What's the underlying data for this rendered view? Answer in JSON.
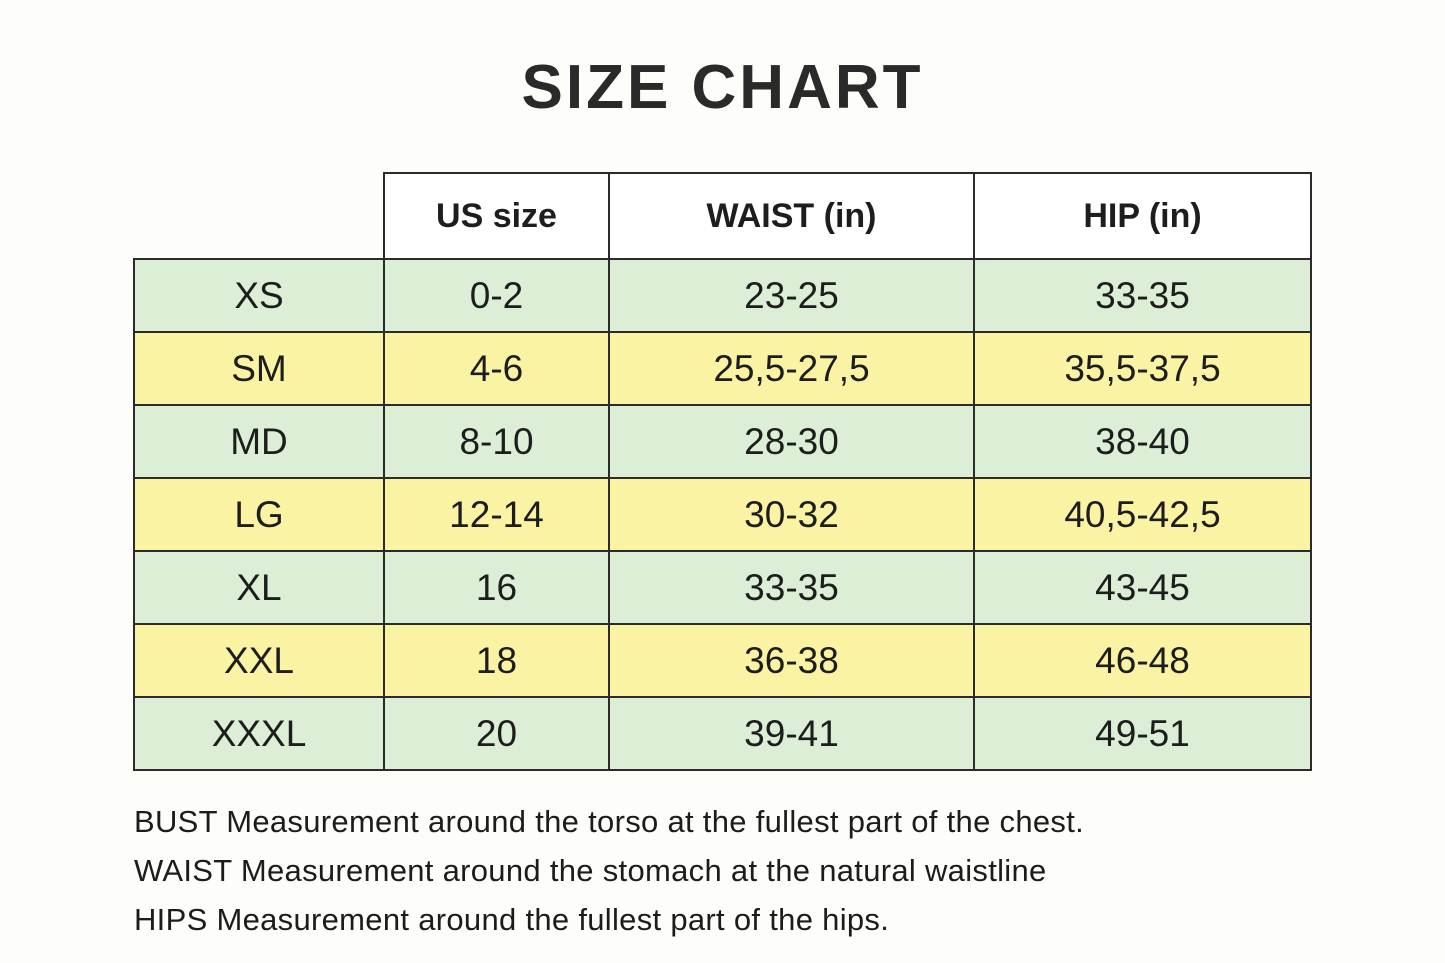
{
  "title": "SIZE CHART",
  "chart_data": {
    "type": "table",
    "columns": [
      "",
      "US size",
      "WAIST (in)",
      "HIP (in)"
    ],
    "rows": [
      {
        "size": "XS",
        "us_size": "0-2",
        "waist_in": "23-25",
        "hip_in": "33-35",
        "tint": "green"
      },
      {
        "size": "SM",
        "us_size": "4-6",
        "waist_in": "25,5-27,5",
        "hip_in": "35,5-37,5",
        "tint": "yellow"
      },
      {
        "size": "MD",
        "us_size": "8-10",
        "waist_in": "28-30",
        "hip_in": "38-40",
        "tint": "green"
      },
      {
        "size": "LG",
        "us_size": "12-14",
        "waist_in": "30-32",
        "hip_in": "40,5-42,5",
        "tint": "yellow"
      },
      {
        "size": "XL",
        "us_size": "16",
        "waist_in": "33-35",
        "hip_in": "43-45",
        "tint": "green"
      },
      {
        "size": "XXL",
        "us_size": "18",
        "waist_in": "36-38",
        "hip_in": "46-48",
        "tint": "yellow"
      },
      {
        "size": "XXXL",
        "us_size": "20",
        "waist_in": "39-41",
        "hip_in": "49-51",
        "tint": "green"
      }
    ]
  },
  "notes": [
    "BUST Measurement around the torso at the fullest part of the chest.",
    "WAIST Measurement around the stomach at the natural waistline",
    "HIPS Measurement around the fullest part of the hips."
  ],
  "colors": {
    "row_green": "#dceed5",
    "row_yellow": "#faf3a3",
    "border": "#2b2b2b",
    "text": "#212121",
    "background": "#fdfdf9"
  }
}
